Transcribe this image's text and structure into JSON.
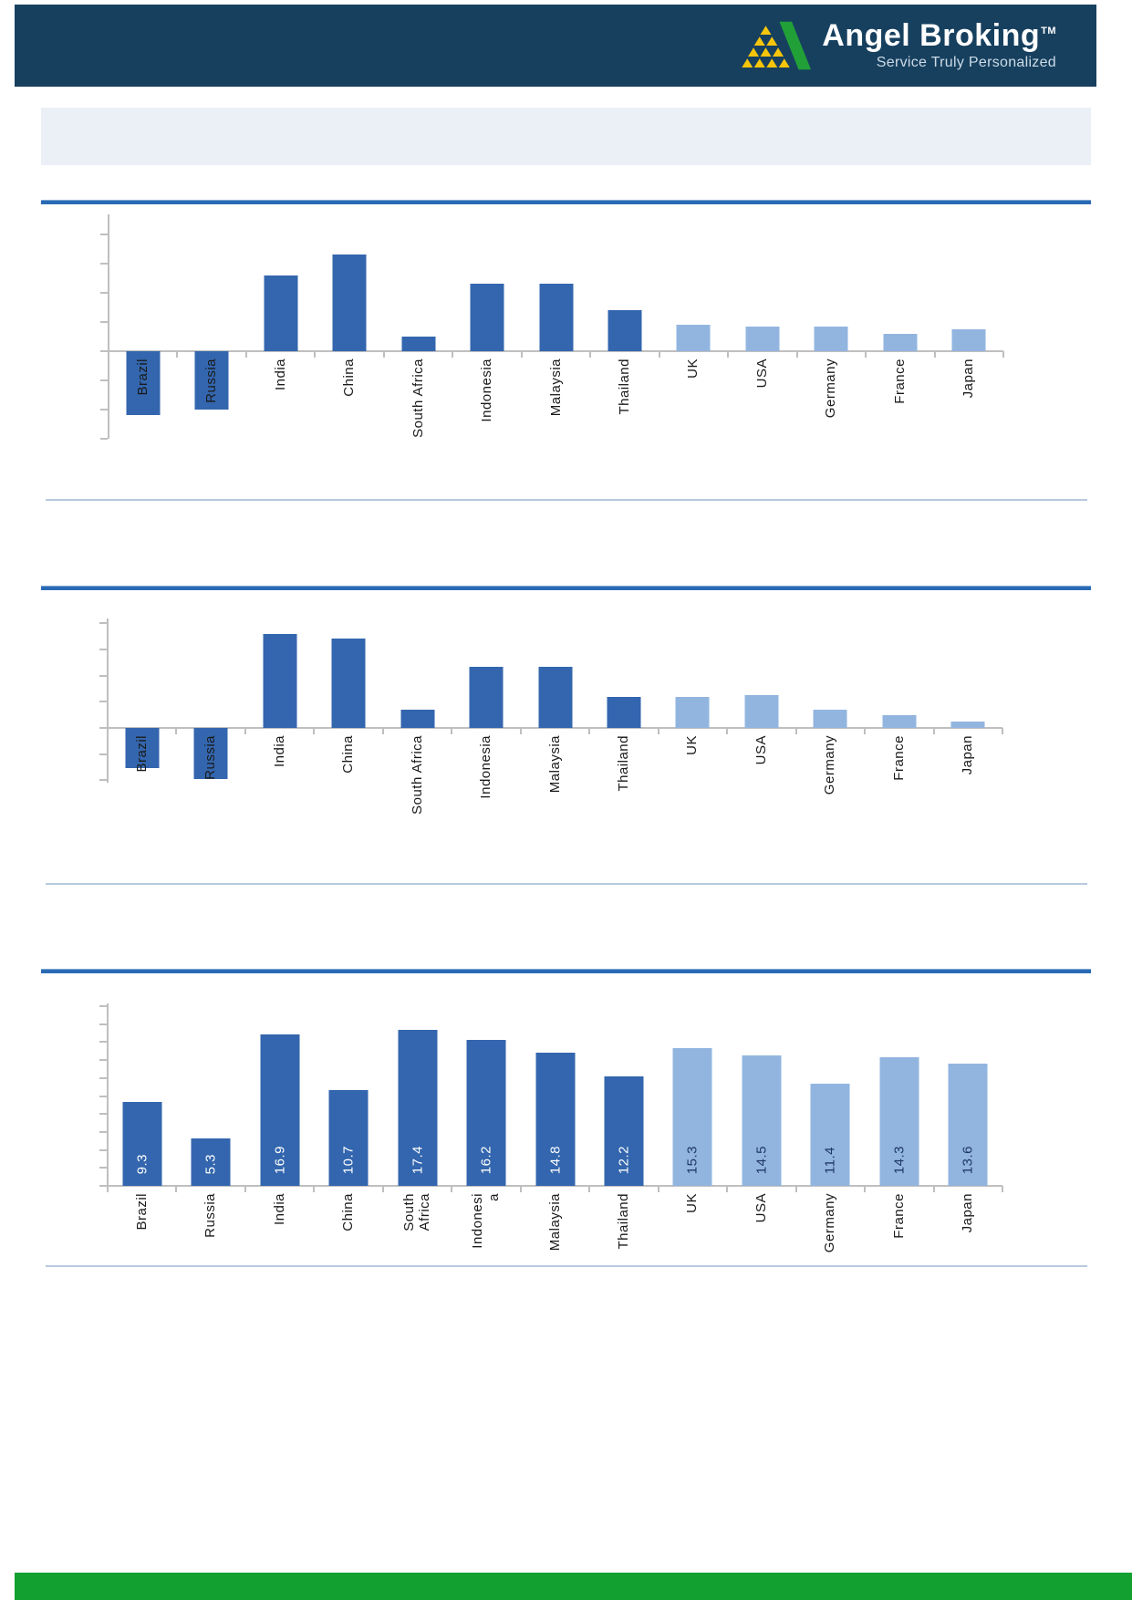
{
  "header": {
    "brand": "Angel Broking",
    "trademark": "TM",
    "tagline": "Service Truly Personalized",
    "band_color": "#17405F",
    "logo": {
      "icon": "angel-pyramid-logo",
      "green": "#21A038",
      "yellow": "#F7C50A"
    }
  },
  "title_band": {
    "text": ""
  },
  "colors": {
    "emerging_bar": "#3366AE",
    "developed_bar": "#92B5E0",
    "section_rule": "#2A6AB4",
    "separator": "#B7C9DE",
    "axis": "#BFBFBF",
    "footer_green": "#12A030",
    "value_label_on_dark": "#FFFFFF",
    "value_label_on_light": "#1F3864"
  },
  "chart_data": [
    {
      "type": "bar",
      "title": "",
      "categories": [
        "Brazil",
        "Russia",
        "India",
        "China",
        "South Africa",
        "Indonesia",
        "Malaysia",
        "Thailand",
        "UK",
        "USA",
        "Germany",
        "France",
        "Japan"
      ],
      "values": [
        -2.2,
        -2.0,
        2.6,
        3.3,
        0.5,
        2.3,
        2.3,
        1.4,
        0.9,
        0.85,
        0.85,
        0.6,
        0.75
      ],
      "unit": "y-axis divisions (numeric axis labels not visible in image)",
      "groups": [
        "emerging",
        "emerging",
        "emerging",
        "emerging",
        "emerging",
        "emerging",
        "emerging",
        "emerging",
        "developed",
        "developed",
        "developed",
        "developed",
        "developed"
      ],
      "ylim": [
        -3,
        4
      ],
      "ytick_step": 1,
      "grid": false,
      "legend": null,
      "data_labels": null
    },
    {
      "type": "bar",
      "title": "",
      "categories": [
        "Brazil",
        "Russia",
        "India",
        "China",
        "South Africa",
        "Indonesia",
        "Malaysia",
        "Thailand",
        "UK",
        "USA",
        "Germany",
        "France",
        "Japan"
      ],
      "values": [
        -1.55,
        -1.95,
        3.6,
        3.4,
        0.7,
        2.35,
        2.35,
        1.2,
        1.2,
        1.25,
        0.7,
        0.5,
        0.25
      ],
      "unit": "y-axis divisions (numeric axis labels not visible in image)",
      "groups": [
        "emerging",
        "emerging",
        "emerging",
        "emerging",
        "emerging",
        "emerging",
        "emerging",
        "emerging",
        "developed",
        "developed",
        "developed",
        "developed",
        "developed"
      ],
      "ylim": [
        -2,
        4
      ],
      "ytick_step": 1,
      "grid": false,
      "legend": null,
      "data_labels": null
    },
    {
      "type": "bar",
      "title": "",
      "categories": [
        "Brazil",
        "Russia",
        "India",
        "China",
        "South Africa",
        "Indonesia",
        "Malaysia",
        "Thailand",
        "UK",
        "USA",
        "Germany",
        "France",
        "Japan"
      ],
      "categories_display": [
        [
          "Brazil"
        ],
        [
          "Russia"
        ],
        [
          "India"
        ],
        [
          "China"
        ],
        [
          "South",
          "Africa"
        ],
        [
          "Indonesi",
          "a"
        ],
        [
          "Malaysia"
        ],
        [
          "Thailand"
        ],
        [
          "UK"
        ],
        [
          "USA"
        ],
        [
          "Germany"
        ],
        [
          "France"
        ],
        [
          "Japan"
        ]
      ],
      "values": [
        9.3,
        5.3,
        16.9,
        10.7,
        17.4,
        16.2,
        14.8,
        12.2,
        15.3,
        14.5,
        11.4,
        14.3,
        13.6
      ],
      "data_labels": [
        "9.3",
        "5.3",
        "16.9",
        "10.7",
        "17.4",
        "16.2",
        "14.8",
        "12.2",
        "15.3",
        "14.5",
        "11.4",
        "14.3",
        "13.6"
      ],
      "groups": [
        "emerging",
        "emerging",
        "emerging",
        "emerging",
        "emerging",
        "emerging",
        "emerging",
        "emerging",
        "developed",
        "developed",
        "developed",
        "developed",
        "developed"
      ],
      "ylim": [
        0,
        20
      ],
      "ytick_step": 2,
      "grid": false,
      "legend": null
    }
  ],
  "footer": {
    "text": ""
  }
}
